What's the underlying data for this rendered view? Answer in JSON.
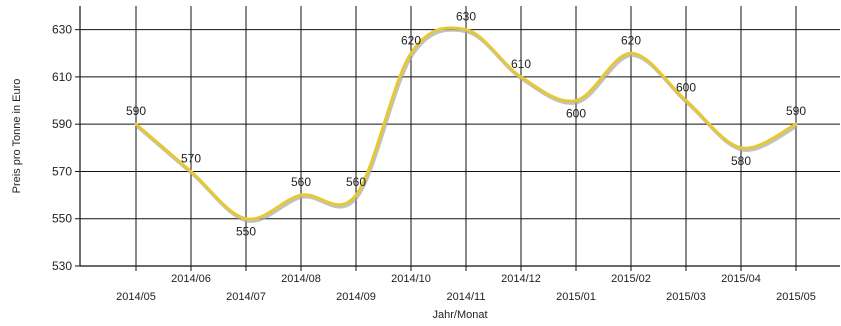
{
  "chart_data": {
    "type": "line",
    "xlabel": "Jahr/Monat",
    "ylabel": "Preis pro Tonne in Euro",
    "categories": [
      "2014/05",
      "2014/06",
      "2014/07",
      "2014/08",
      "2014/09",
      "2014/10",
      "2014/11",
      "2014/12",
      "2015/01",
      "2015/02",
      "2015/03",
      "2015/04",
      "2015/05"
    ],
    "series": [
      {
        "values": [
          590,
          570,
          550,
          560,
          560,
          620,
          630,
          610,
          600,
          620,
          600,
          580,
          590
        ]
      }
    ],
    "ylim": [
      530,
      640
    ],
    "yticks": [
      530,
      550,
      570,
      590,
      610,
      630
    ],
    "line_color": "#e6c835",
    "line_shadow_color": "#a8a8a8",
    "grid": true,
    "smooth": true,
    "data_labels": true
  }
}
